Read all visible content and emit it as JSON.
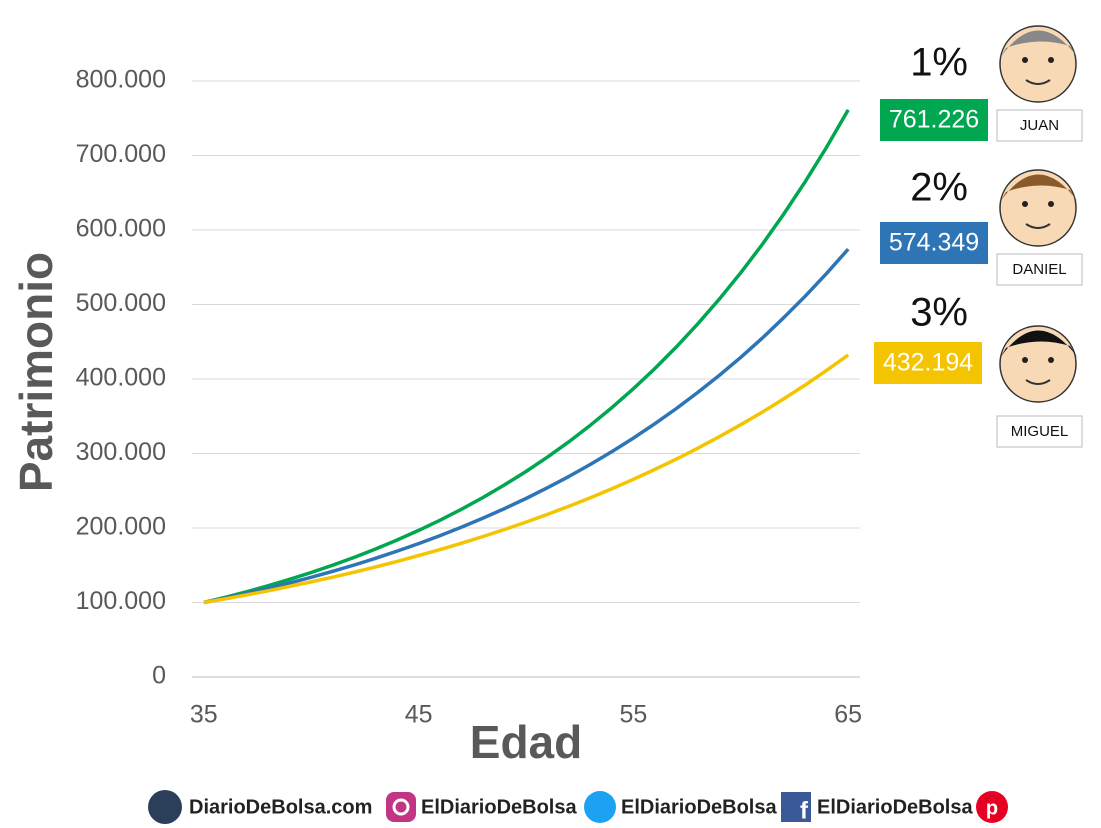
{
  "chart_data": {
    "type": "line",
    "x_label": "Edad",
    "y_label": "Patrimonio",
    "x": [
      35,
      36,
      37,
      38,
      39,
      40,
      41,
      42,
      43,
      44,
      45,
      46,
      47,
      48,
      49,
      50,
      51,
      52,
      53,
      54,
      55,
      56,
      57,
      58,
      59,
      60,
      61,
      62,
      63,
      64,
      65
    ],
    "xlim": [
      34.45,
      65.55
    ],
    "xticks": [
      35,
      45,
      55,
      65
    ],
    "ylim": [
      0,
      800000
    ],
    "yticks": [
      0,
      {
        "value": 100000,
        "label": "100.000"
      },
      {
        "value": 200000,
        "label": "200.000"
      },
      {
        "value": 300000,
        "label": "300.000"
      },
      {
        "value": 400000,
        "label": "400.000"
      },
      {
        "value": 500000,
        "label": "500.000"
      },
      {
        "value": 600000,
        "label": "600.000"
      },
      {
        "value": 700000,
        "label": "700.000"
      },
      {
        "value": 800000,
        "label": "800.000"
      }
    ],
    "grid": true,
    "series": [
      {
        "name": "JUAN",
        "fee": "1%",
        "end_label": "761.226",
        "color": "#00a650",
        "values": [
          100000,
          107000,
          114490,
          122504,
          131080,
          140255,
          150073,
          160578,
          171819,
          183846,
          196715,
          210485,
          225219,
          240985,
          257853,
          275903,
          295216,
          315882,
          337993,
          361653,
          386968,
          414056,
          443040,
          474053,
          507237,
          542743,
          580735,
          621387,
          664884,
          711426,
          761226
        ]
      },
      {
        "name": "DANIEL",
        "fee": "2%",
        "end_label": "574.349",
        "color": "#2e75b6",
        "values": [
          100000,
          106000,
          112360,
          119102,
          126248,
          133823,
          141852,
          150363,
          159385,
          168948,
          179085,
          189830,
          201220,
          213293,
          226090,
          239656,
          254035,
          269277,
          285434,
          302560,
          320714,
          339956,
          360354,
          381975,
          404893,
          429187,
          454938,
          482235,
          511169,
          541839,
          574349
        ]
      },
      {
        "name": "MIGUEL",
        "fee": "3%",
        "end_label": "432.194",
        "color": "#f5c400",
        "values": [
          100000,
          105000,
          110250,
          115763,
          121551,
          127628,
          134010,
          140710,
          147746,
          155133,
          162889,
          171034,
          179586,
          188565,
          197993,
          207893,
          218287,
          229202,
          240662,
          252695,
          265330,
          278596,
          292526,
          307152,
          322510,
          338635,
          355567,
          373346,
          392013,
          411614,
          432194
        ]
      }
    ]
  },
  "footer": {
    "website": "DiarioDeBolsa.com",
    "instagram": "ElDiarioDeBolsa",
    "twitter": "ElDiarioDeBolsa",
    "facebook": "ElDiarioDeBolsa"
  }
}
